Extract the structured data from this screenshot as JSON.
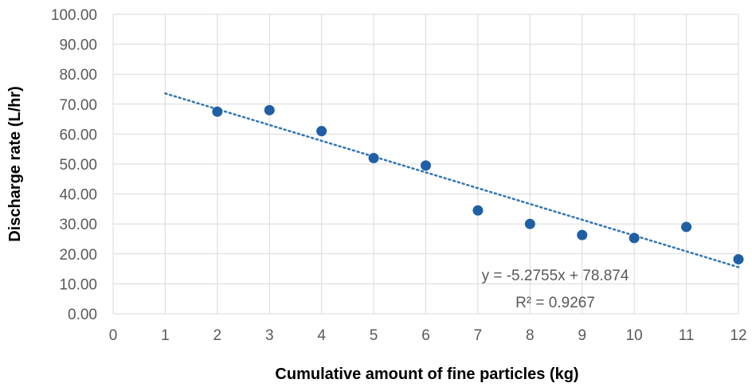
{
  "chart_data": {
    "type": "scatter",
    "title": "",
    "xlabel": "Cumulative amount of fine particles (kg)",
    "ylabel": "Discharge rate (L/hr)",
    "xlim": [
      0,
      12
    ],
    "ylim": [
      0,
      100
    ],
    "x_ticks": [
      "0",
      "1",
      "2",
      "3",
      "4",
      "5",
      "6",
      "7",
      "8",
      "9",
      "10",
      "11",
      "12"
    ],
    "y_ticks": [
      "0.00",
      "10.00",
      "20.00",
      "30.00",
      "40.00",
      "50.00",
      "60.00",
      "70.00",
      "80.00",
      "90.00",
      "100.00"
    ],
    "grid": true,
    "series": [
      {
        "x": [
          2,
          3,
          4,
          5,
          6,
          7,
          8,
          9,
          10,
          11,
          12
        ],
        "y": [
          67.5,
          68.0,
          61.0,
          52.0,
          49.5,
          34.5,
          30.0,
          26.3,
          25.3,
          29.0,
          18.2
        ],
        "color": "#1f5fa6"
      }
    ],
    "trendline": {
      "type": "linear",
      "slope": -5.2755,
      "intercept": 78.874,
      "x_range": [
        1,
        12
      ],
      "style": "dotted",
      "color": "#2e75b6",
      "equation_label": "y = -5.2755x + 78.874",
      "r2_label": "R² = 0.9267"
    }
  }
}
